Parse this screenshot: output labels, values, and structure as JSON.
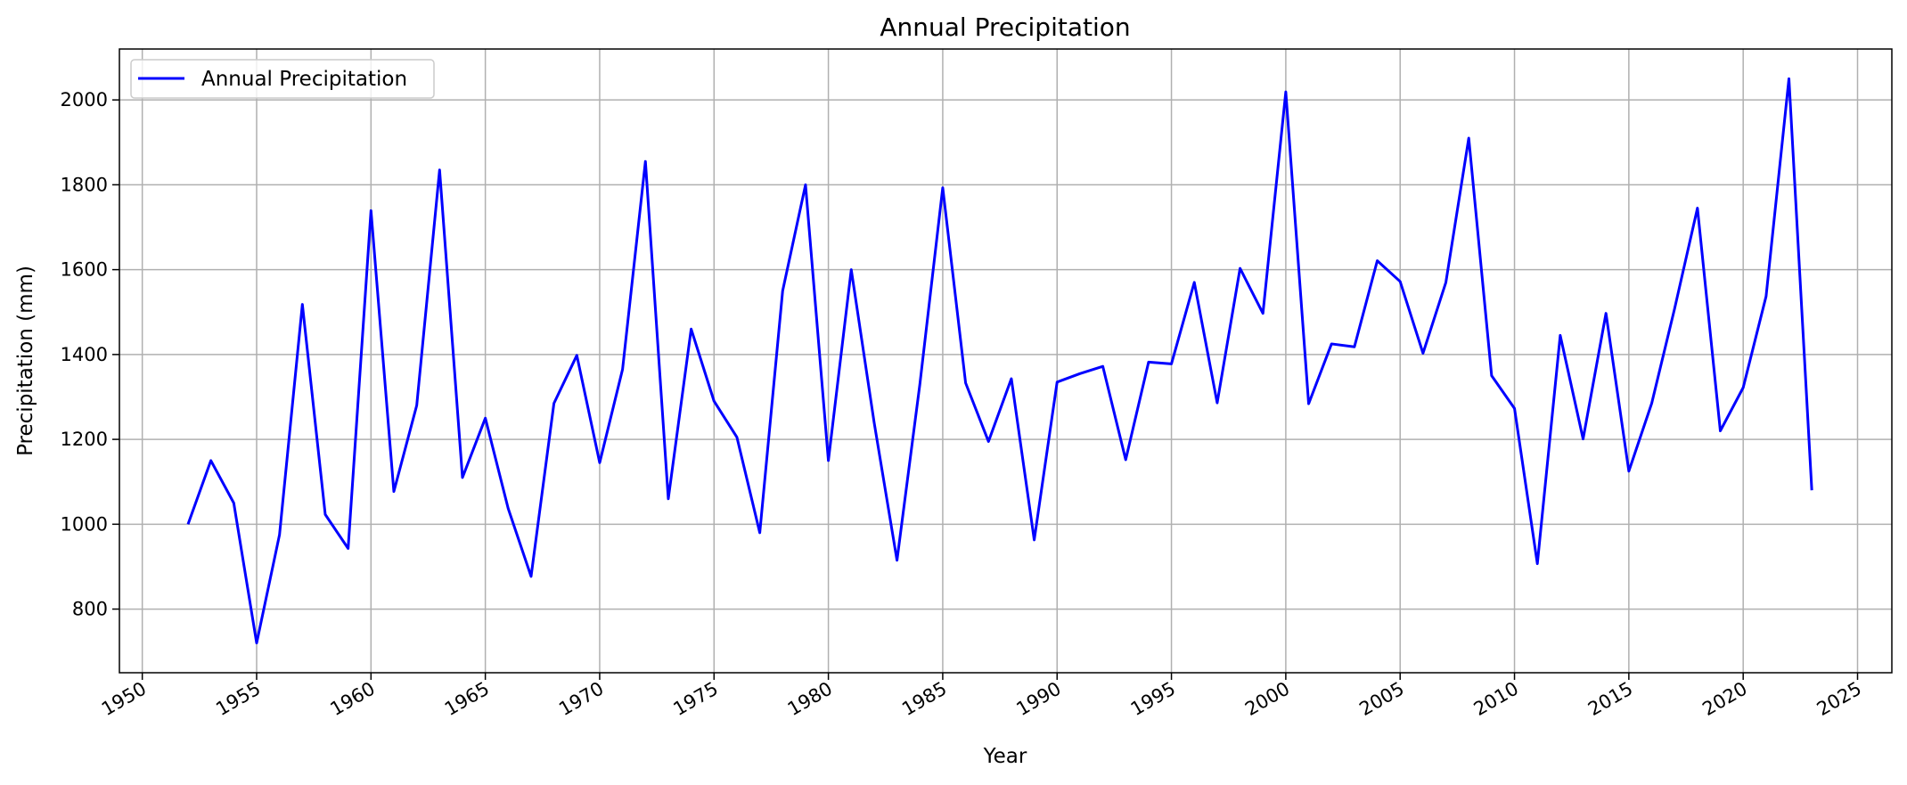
{
  "chart_data": {
    "type": "line",
    "title": "Annual Precipitation",
    "xlabel": "Year",
    "ylabel": "Precipitation (mm)",
    "xlim": [
      1949,
      2026.5
    ],
    "ylim": [
      650,
      2120
    ],
    "grid": true,
    "legend": "top-left",
    "x_ticks": [
      1950,
      1955,
      1960,
      1965,
      1970,
      1975,
      1980,
      1985,
      1990,
      1995,
      2000,
      2005,
      2010,
      2015,
      2020,
      2025
    ],
    "y_ticks": [
      800,
      1000,
      1200,
      1400,
      1600,
      1800,
      2000
    ],
    "x_tick_labels": [
      "1950",
      "1955",
      "1960",
      "1965",
      "1970",
      "1975",
      "1980",
      "1985",
      "1990",
      "1995",
      "2000",
      "2005",
      "2010",
      "2015",
      "2020",
      "2025"
    ],
    "y_tick_labels": [
      "800",
      "1000",
      "1200",
      "1400",
      "1600",
      "1800",
      "2000"
    ],
    "series": [
      {
        "name": "Annual Precipitation",
        "color": "#0000ff",
        "x": [
          1952,
          1953,
          1954,
          1955,
          1956,
          1957,
          1958,
          1959,
          1960,
          1961,
          1962,
          1963,
          1964,
          1965,
          1966,
          1967,
          1968,
          1969,
          1970,
          1971,
          1972,
          1973,
          1974,
          1975,
          1976,
          1977,
          1978,
          1979,
          1980,
          1981,
          1982,
          1983,
          1984,
          1985,
          1986,
          1987,
          1988,
          1989,
          1990,
          1991,
          1992,
          1993,
          1994,
          1995,
          1996,
          1997,
          1998,
          1999,
          2000,
          2001,
          2002,
          2003,
          2004,
          2005,
          2006,
          2007,
          2008,
          2009,
          2010,
          2011,
          2012,
          2013,
          2014,
          2015,
          2016,
          2017,
          2018,
          2019,
          2020,
          2021,
          2022,
          2023
        ],
        "y": [
          1000,
          1150,
          1050,
          720,
          975,
          1518,
          1023,
          943,
          1739,
          1077,
          1280,
          1835,
          1110,
          1250,
          1037,
          877,
          1285,
          1398,
          1145,
          1365,
          1855,
          1060,
          1460,
          1290,
          1205,
          980,
          1550,
          1800,
          1150,
          1600,
          1240,
          915,
          1330,
          1793,
          1333,
          1195,
          1343,
          963,
          1335,
          1355,
          1372,
          1152,
          1382,
          1378,
          1570,
          1286,
          1603,
          1497,
          2019,
          1284,
          1425,
          1418,
          1621,
          1572,
          1403,
          1570,
          1910,
          1350,
          1273,
          907,
          1445,
          1201,
          1497,
          1125,
          1285,
          1508,
          1745,
          1220,
          1322,
          1537,
          2050,
          1080
        ]
      }
    ]
  }
}
